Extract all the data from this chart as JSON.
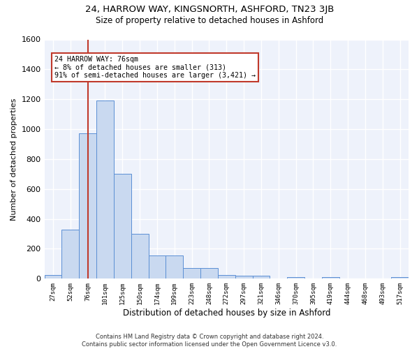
{
  "title1": "24, HARROW WAY, KINGSNORTH, ASHFORD, TN23 3JB",
  "title2": "Size of property relative to detached houses in Ashford",
  "xlabel": "Distribution of detached houses by size in Ashford",
  "ylabel": "Number of detached properties",
  "categories": [
    "27sqm",
    "52sqm",
    "76sqm",
    "101sqm",
    "125sqm",
    "150sqm",
    "174sqm",
    "199sqm",
    "223sqm",
    "248sqm",
    "272sqm",
    "297sqm",
    "321sqm",
    "346sqm",
    "370sqm",
    "395sqm",
    "419sqm",
    "444sqm",
    "468sqm",
    "493sqm",
    "517sqm"
  ],
  "values": [
    25,
    330,
    970,
    1190,
    700,
    300,
    155,
    155,
    70,
    70,
    25,
    18,
    18,
    0,
    10,
    0,
    10,
    0,
    0,
    0,
    10
  ],
  "bar_color": "#c9d9f0",
  "bar_edge_color": "#5b8fd4",
  "vline_x": 2,
  "vline_color": "#c0392b",
  "annotation_text": "24 HARROW WAY: 76sqm\n← 8% of detached houses are smaller (313)\n91% of semi-detached houses are larger (3,421) →",
  "annotation_box_color": "#ffffff",
  "annotation_box_edge": "#c0392b",
  "background_color": "#eef2fb",
  "grid_color": "#ffffff",
  "footer": "Contains HM Land Registry data © Crown copyright and database right 2024.\nContains public sector information licensed under the Open Government Licence v3.0.",
  "ylim": [
    0,
    1600
  ],
  "yticks": [
    0,
    200,
    400,
    600,
    800,
    1000,
    1200,
    1400,
    1600
  ]
}
